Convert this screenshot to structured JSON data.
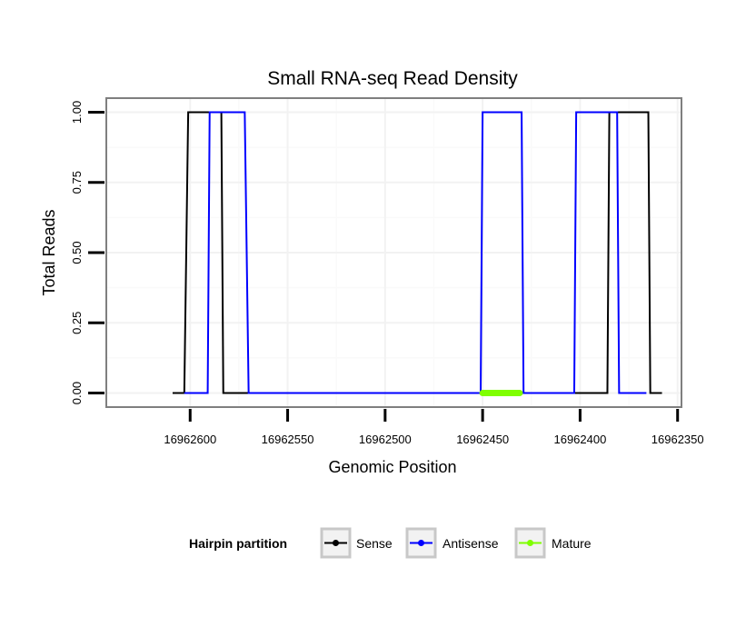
{
  "chart_data": {
    "type": "line",
    "title": "Small RNA-seq Read Density",
    "xlabel": "Genomic Position",
    "ylabel": "Total Reads",
    "x_reversed": true,
    "xlim": [
      16962643,
      16962348
    ],
    "ylim": [
      -0.05,
      1.05
    ],
    "x_ticks": [
      16962600,
      16962550,
      16962500,
      16962450,
      16962400,
      16962350
    ],
    "x_tick_labels": [
      "16962600",
      "16962550",
      "16962500",
      "16962450",
      "16962400",
      "16962350"
    ],
    "y_ticks": [
      0,
      0.25,
      0.5,
      0.75,
      1.0
    ],
    "y_tick_labels": [
      "0.00",
      "0.25",
      "0.50",
      "0.75",
      "1.00"
    ],
    "grid": true,
    "series": [
      {
        "name": "Sense",
        "color": "#000000",
        "points": [
          [
            16962609,
            0
          ],
          [
            16962603,
            0
          ],
          [
            16962601,
            1
          ],
          [
            16962590,
            1
          ],
          [
            16962584,
            1
          ],
          [
            16962583,
            0
          ],
          [
            16962450,
            0
          ],
          [
            16962400,
            0
          ],
          [
            16962386,
            0
          ],
          [
            16962385,
            1
          ],
          [
            16962380,
            1
          ],
          [
            16962365,
            1
          ],
          [
            16962364,
            0
          ],
          [
            16962358,
            0
          ]
        ]
      },
      {
        "name": "Antisense",
        "color": "#0000ff",
        "points": [
          [
            16962603,
            0
          ],
          [
            16962591,
            0
          ],
          [
            16962590,
            1
          ],
          [
            16962572,
            1
          ],
          [
            16962570,
            0
          ],
          [
            16962450,
            0
          ],
          [
            16962451,
            0
          ],
          [
            16962450,
            1
          ],
          [
            16962430,
            1
          ],
          [
            16962429,
            0
          ],
          [
            16962403,
            0
          ],
          [
            16962402,
            1
          ],
          [
            16962387,
            1
          ],
          [
            16962381,
            1
          ],
          [
            16962380,
            0
          ],
          [
            16962366,
            0
          ]
        ]
      },
      {
        "name": "Mature",
        "color": "#7fff00",
        "points": [
          [
            16962450,
            0
          ],
          [
            16962431,
            0
          ]
        ]
      }
    ],
    "legend": {
      "title": "Hairpin partition",
      "position": "bottom",
      "entries": [
        "Sense",
        "Antisense",
        "Mature"
      ]
    }
  }
}
